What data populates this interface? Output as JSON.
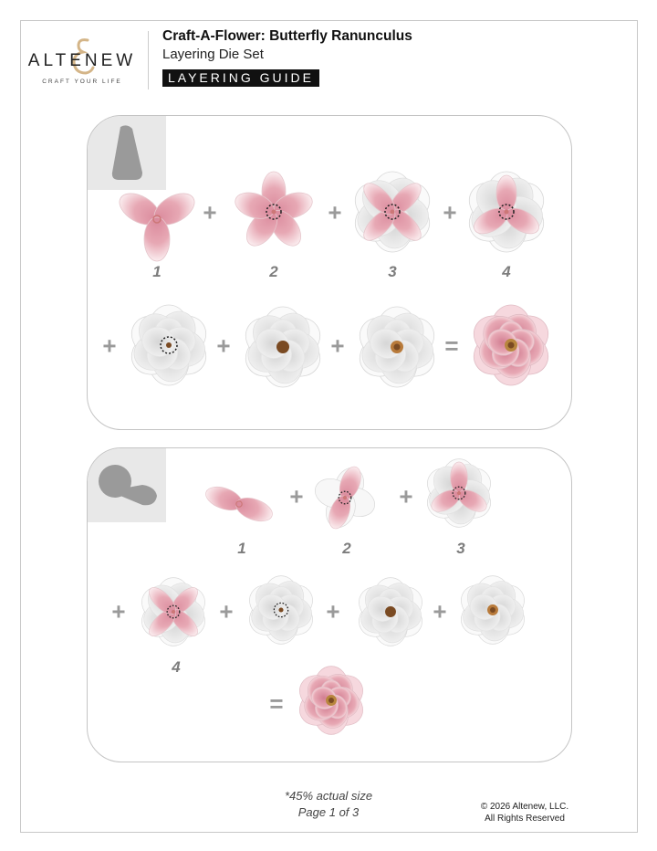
{
  "brand": {
    "name": "ALTENEW",
    "tagline": "CRAFT YOUR LIFE"
  },
  "header": {
    "title": "Craft-A-Flower: Butterfly Ranunculus",
    "subtitle": "Layering Die Set",
    "badge": "LAYERING GUIDE"
  },
  "panel1": {
    "steps": [
      "1",
      "2",
      "3",
      "4"
    ],
    "plus": "+",
    "equals": "="
  },
  "panel2": {
    "steps": [
      "1",
      "2",
      "3",
      "4"
    ],
    "plus": "+",
    "equals": "="
  },
  "footer": {
    "scale_note": "*45% actual size",
    "page": "Page 1 of 3",
    "copyright": "© 2026 Altenew, LLC.",
    "rights": "All Rights Reserved"
  },
  "colors": {
    "pink": "#e7a8b4",
    "petal_white": "#f4f4f4",
    "center_brown": "#7a4a22",
    "gold": "#c9a36a"
  }
}
